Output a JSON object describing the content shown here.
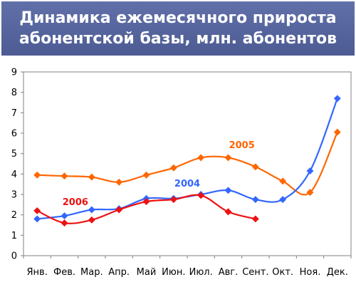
{
  "title_lines": [
    "Динамика ежемесячного прироста",
    "абонентской базы, млн. абонентов"
  ],
  "colors": {
    "banner": "#5666a0",
    "title_text": "#ffffff",
    "s2004": "#3366ff",
    "s2005": "#ff6600",
    "s2006": "#ee1111"
  },
  "chart_data": {
    "type": "line",
    "title": "Динамика ежемесячного прироста абонентской базы, млн. абонентов",
    "categories": [
      "Янв.",
      "Фев.",
      "Мар.",
      "Апр.",
      "Май",
      "Июн.",
      "Июл.",
      "Авг.",
      "Сент.",
      "Окт.",
      "Ноя.",
      "Дек."
    ],
    "ylim": [
      0,
      9
    ],
    "yticks": [
      "0",
      "1",
      "2",
      "3",
      "4",
      "5",
      "6",
      "7",
      "8",
      "9"
    ],
    "grid": false,
    "smooth": true,
    "series": [
      {
        "name": "2005",
        "color": "#ff6600",
        "label_at": 7.5,
        "label_value": 5.45,
        "values": [
          3.95,
          3.9,
          3.85,
          3.6,
          3.95,
          4.3,
          4.8,
          4.8,
          4.35,
          3.65,
          3.1,
          6.05
        ]
      },
      {
        "name": "2004",
        "color": "#3366ff",
        "label_at": 5.5,
        "label_value": 3.55,
        "values": [
          1.8,
          1.95,
          2.25,
          2.3,
          2.8,
          2.8,
          3.0,
          3.2,
          2.75,
          2.75,
          4.15,
          7.7
        ]
      },
      {
        "name": "2006",
        "color": "#ee1111",
        "label_at": 1.4,
        "label_value": 2.65,
        "values": [
          2.2,
          1.6,
          1.75,
          2.25,
          2.65,
          2.75,
          2.95,
          2.15,
          1.8,
          null,
          null,
          null
        ]
      }
    ]
  }
}
